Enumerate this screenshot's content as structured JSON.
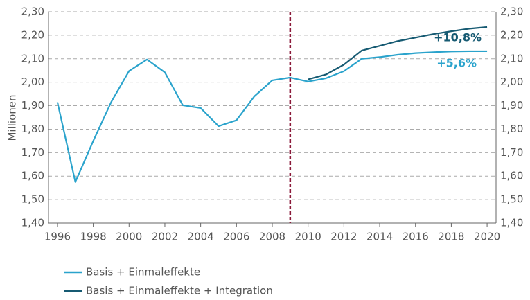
{
  "chart_data": {
    "type": "line",
    "y_axis_label": "Millionen",
    "x": [
      1996,
      1997,
      1998,
      1999,
      2000,
      2001,
      2002,
      2003,
      2004,
      2005,
      2006,
      2007,
      2008,
      2009,
      2010,
      2011,
      2012,
      2013,
      2014,
      2015,
      2016,
      2017,
      2018,
      2019,
      2020
    ],
    "series": [
      {
        "name": "Basis + Einmaleffekte",
        "color": "#2aa3cc",
        "values": [
          1.915,
          1.575,
          1.75,
          1.915,
          2.048,
          2.097,
          2.042,
          1.902,
          1.89,
          1.813,
          1.838,
          1.94,
          2.008,
          2.02,
          2.003,
          2.017,
          2.047,
          2.1,
          2.107,
          2.117,
          2.124,
          2.128,
          2.131,
          2.132,
          2.132
        ]
      },
      {
        "name": "Basis + Einmaleffekte + Integration",
        "color": "#165a72",
        "values": [
          null,
          null,
          null,
          null,
          null,
          null,
          null,
          null,
          null,
          null,
          null,
          null,
          null,
          null,
          2.012,
          2.033,
          2.075,
          2.135,
          2.155,
          2.175,
          2.19,
          2.205,
          2.217,
          2.228,
          2.235
        ]
      }
    ],
    "annotations": [
      {
        "text": "+10,8%",
        "color": "#165a72"
      },
      {
        "text": "+5,6%",
        "color": "#2aa3cc"
      }
    ],
    "vline": {
      "x": 2009,
      "color": "#8b1a3a"
    },
    "xlim": [
      1995.5,
      2020.5
    ],
    "xticks": [
      1996,
      1998,
      2000,
      2002,
      2004,
      2006,
      2008,
      2010,
      2012,
      2014,
      2016,
      2018,
      2020
    ],
    "ylim": [
      1.4,
      2.3
    ],
    "yticks": [
      {
        "value": 1.4,
        "label": "1,40"
      },
      {
        "value": 1.5,
        "label": "1,50"
      },
      {
        "value": 1.6,
        "label": "1,60"
      },
      {
        "value": 1.7,
        "label": "1,70"
      },
      {
        "value": 1.8,
        "label": "1,80"
      },
      {
        "value": 1.9,
        "label": "1,90"
      },
      {
        "value": 2.0,
        "label": "2,00"
      },
      {
        "value": 2.1,
        "label": "2,10"
      },
      {
        "value": 2.2,
        "label": "2,20"
      },
      {
        "value": 2.3,
        "label": "2,30"
      }
    ],
    "y2lim": [
      1.4,
      2.3
    ],
    "y2ticks": [
      {
        "value": 1.4,
        "label": "1,40"
      },
      {
        "value": 1.5,
        "label": "1,50"
      },
      {
        "value": 1.6,
        "label": "1,60"
      },
      {
        "value": 1.7,
        "label": "1,70"
      },
      {
        "value": 1.8,
        "label": "1,80"
      },
      {
        "value": 1.9,
        "label": "1,90"
      },
      {
        "value": 2.0,
        "label": "2,00"
      },
      {
        "value": 2.1,
        "label": "2,10"
      },
      {
        "value": 2.2,
        "label": "2,20"
      },
      {
        "value": 2.3,
        "label": "2,30"
      }
    ],
    "grid": true,
    "legend": "bottom-left"
  }
}
